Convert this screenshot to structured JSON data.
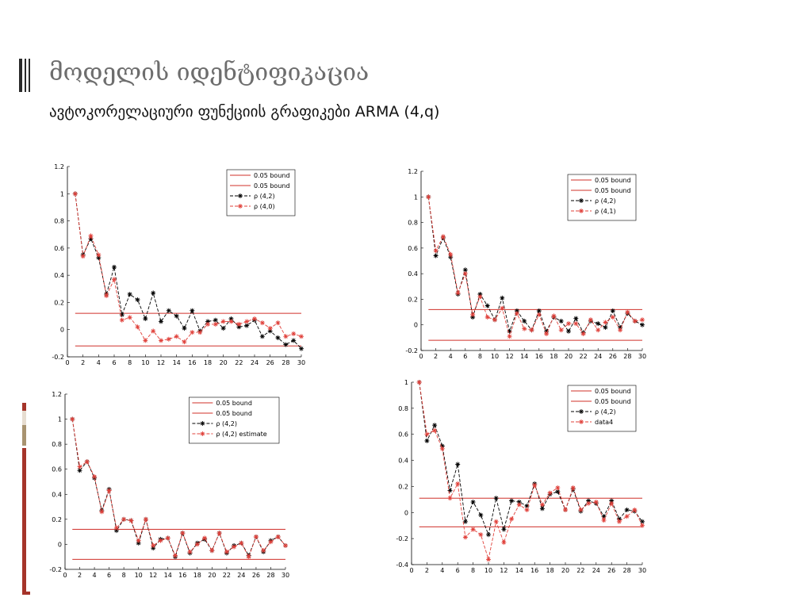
{
  "slide": {
    "title": "მოდელის იდენტიფიკაცია",
    "subtitle": "ავტოკორელაციური ფუნქციის გრაფიკები ARMA (4,q)"
  },
  "colors": {
    "black": "#000000",
    "red": "#e0403a",
    "bound": "#d0302a",
    "accent_red": "#a5342a",
    "accent_tan": "#a89370"
  },
  "chart_data": [
    {
      "type": "line",
      "xlim": [
        0,
        30
      ],
      "ylim": [
        -0.2,
        1.2
      ],
      "xticks": [
        0,
        2,
        4,
        6,
        8,
        10,
        12,
        14,
        16,
        18,
        20,
        22,
        24,
        26,
        28,
        30
      ],
      "yticks": [
        -0.2,
        0,
        0.2,
        0.4,
        0.6,
        0.8,
        1,
        1.2
      ],
      "legend_position": "top-right",
      "x": [
        1,
        2,
        3,
        4,
        5,
        6,
        7,
        8,
        9,
        10,
        11,
        12,
        13,
        14,
        15,
        16,
        17,
        18,
        19,
        20,
        21,
        22,
        23,
        24,
        25,
        26,
        27,
        28,
        29,
        30
      ],
      "bounds": [
        0.12,
        -0.12
      ],
      "series": [
        {
          "name": "0.05 bound",
          "kind": "bound"
        },
        {
          "name": "0.05 bound",
          "kind": "bound"
        },
        {
          "name": "ρ (4,2)",
          "kind": "black",
          "values": [
            1,
            0.55,
            0.67,
            0.53,
            0.26,
            0.46,
            0.11,
            0.26,
            0.22,
            0.08,
            0.27,
            0.06,
            0.14,
            0.1,
            0.01,
            0.14,
            -0.01,
            0.06,
            0.07,
            0.01,
            0.08,
            0.02,
            0.03,
            0.07,
            -0.05,
            -0.01,
            -0.06,
            -0.11,
            -0.08,
            -0.14
          ]
        },
        {
          "name": "ρ (4,0)",
          "kind": "red",
          "values": [
            1,
            0.54,
            0.69,
            0.55,
            0.25,
            0.37,
            0.07,
            0.09,
            0.02,
            -0.08,
            -0.01,
            -0.08,
            -0.07,
            -0.05,
            -0.09,
            -0.02,
            -0.02,
            0.04,
            0.04,
            0.06,
            0.06,
            0.04,
            0.06,
            0.08,
            0.05,
            0.01,
            0.05,
            -0.05,
            -0.03,
            -0.05
          ]
        }
      ]
    },
    {
      "type": "line",
      "xlim": [
        0,
        30
      ],
      "ylim": [
        -0.2,
        1.2
      ],
      "xticks": [
        0,
        2,
        4,
        6,
        8,
        10,
        12,
        14,
        16,
        18,
        20,
        22,
        24,
        26,
        28,
        30
      ],
      "yticks": [
        -0.2,
        0,
        0.2,
        0.4,
        0.6,
        0.8,
        1,
        1.2
      ],
      "legend_position": "top-right",
      "x": [
        1,
        2,
        3,
        4,
        5,
        6,
        7,
        8,
        9,
        10,
        11,
        12,
        13,
        14,
        15,
        16,
        17,
        18,
        19,
        20,
        21,
        22,
        23,
        24,
        25,
        26,
        27,
        28,
        29,
        30
      ],
      "bounds": [
        0.12,
        -0.12
      ],
      "series": [
        {
          "name": "0.05 bound",
          "kind": "bound"
        },
        {
          "name": "0.05 bound",
          "kind": "bound"
        },
        {
          "name": "ρ (4,2)",
          "kind": "black",
          "values": [
            1,
            0.54,
            0.68,
            0.53,
            0.24,
            0.43,
            0.06,
            0.24,
            0.15,
            0.04,
            0.21,
            -0.05,
            0.11,
            0.03,
            -0.04,
            0.11,
            -0.05,
            0.06,
            0.03,
            -0.05,
            0.05,
            -0.06,
            0.03,
            0.01,
            -0.02,
            0.11,
            -0.02,
            0.09,
            0.03,
            0.0
          ]
        },
        {
          "name": "ρ (4,1)",
          "kind": "red",
          "values": [
            1,
            0.58,
            0.69,
            0.55,
            0.25,
            0.4,
            0.08,
            0.22,
            0.06,
            0.04,
            0.13,
            -0.09,
            0.09,
            -0.03,
            -0.04,
            0.08,
            -0.07,
            0.07,
            -0.04,
            0.01,
            0.01,
            -0.07,
            0.04,
            -0.04,
            0.02,
            0.06,
            -0.04,
            0.1,
            0.03,
            0.04
          ]
        }
      ]
    },
    {
      "type": "line",
      "xlim": [
        0,
        30
      ],
      "ylim": [
        -0.2,
        1.2
      ],
      "xticks": [
        0,
        2,
        4,
        6,
        8,
        10,
        12,
        14,
        16,
        18,
        20,
        22,
        24,
        26,
        28,
        30
      ],
      "yticks": [
        -0.2,
        0,
        0.2,
        0.4,
        0.6,
        0.8,
        1,
        1.2
      ],
      "legend_position": "top-right",
      "x": [
        1,
        2,
        3,
        4,
        5,
        6,
        7,
        8,
        9,
        10,
        11,
        12,
        13,
        14,
        15,
        16,
        17,
        18,
        19,
        20,
        21,
        22,
        23,
        24,
        25,
        26,
        27,
        28,
        29,
        30
      ],
      "bounds": [
        0.12,
        -0.12
      ],
      "series": [
        {
          "name": "0.05 bound",
          "kind": "bound"
        },
        {
          "name": "0.05 bound",
          "kind": "bound"
        },
        {
          "name": "ρ (4,2)",
          "kind": "black",
          "values": [
            1,
            0.59,
            0.66,
            0.53,
            0.27,
            0.44,
            0.11,
            0.2,
            0.19,
            0.01,
            0.2,
            -0.03,
            0.04,
            0.05,
            -0.1,
            0.09,
            -0.07,
            0.01,
            0.04,
            -0.05,
            0.09,
            -0.07,
            -0.01,
            0.01,
            -0.09,
            0.06,
            -0.06,
            0.03,
            0.06,
            -0.01
          ]
        },
        {
          "name": "ρ (4,2) estimate",
          "kind": "red",
          "values": [
            1,
            0.62,
            0.66,
            0.54,
            0.26,
            0.43,
            0.13,
            0.2,
            0.19,
            0.03,
            0.2,
            -0.01,
            0.03,
            0.05,
            -0.09,
            0.09,
            -0.06,
            0.0,
            0.05,
            -0.05,
            0.09,
            -0.06,
            -0.02,
            0.01,
            -0.1,
            0.06,
            -0.05,
            0.02,
            0.06,
            -0.01
          ]
        }
      ]
    },
    {
      "type": "line",
      "xlim": [
        0,
        30
      ],
      "ylim": [
        -0.4,
        1
      ],
      "xticks": [
        0,
        2,
        4,
        6,
        8,
        10,
        12,
        14,
        16,
        18,
        20,
        22,
        24,
        26,
        28,
        30
      ],
      "yticks": [
        -0.4,
        -0.2,
        0,
        0.2,
        0.4,
        0.6,
        0.8,
        1
      ],
      "legend_position": "top-right",
      "x": [
        1,
        2,
        3,
        4,
        5,
        6,
        7,
        8,
        9,
        10,
        11,
        12,
        13,
        14,
        15,
        16,
        17,
        18,
        19,
        20,
        21,
        22,
        23,
        24,
        25,
        26,
        27,
        28,
        29,
        30
      ],
      "bounds": [
        0.11,
        -0.11
      ],
      "series": [
        {
          "name": "0.05 bound",
          "kind": "bound"
        },
        {
          "name": "0.05 bound",
          "kind": "bound"
        },
        {
          "name": "ρ (4,2)",
          "kind": "black",
          "values": [
            1,
            0.55,
            0.67,
            0.51,
            0.17,
            0.37,
            -0.07,
            0.08,
            -0.02,
            -0.17,
            0.11,
            -0.13,
            0.09,
            0.08,
            0.05,
            0.22,
            0.03,
            0.14,
            0.16,
            0.02,
            0.18,
            0.01,
            0.09,
            0.07,
            -0.03,
            0.09,
            -0.05,
            0.02,
            0.01,
            -0.07
          ]
        },
        {
          "name": "data4",
          "kind": "red",
          "values": [
            1,
            0.6,
            0.63,
            0.49,
            0.11,
            0.22,
            -0.19,
            -0.13,
            -0.17,
            -0.36,
            -0.07,
            -0.23,
            -0.05,
            0.06,
            0.02,
            0.21,
            0.06,
            0.15,
            0.19,
            0.02,
            0.19,
            0.02,
            0.07,
            0.08,
            -0.06,
            0.07,
            -0.07,
            -0.03,
            0.02,
            -0.1
          ]
        }
      ]
    }
  ]
}
